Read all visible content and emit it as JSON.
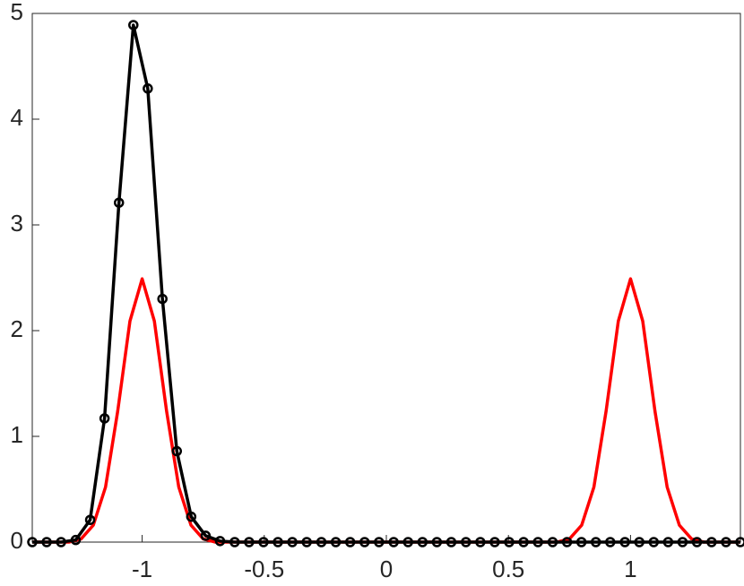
{
  "chart_data": {
    "type": "line",
    "xlim": [
      -1.45,
      1.45
    ],
    "ylim": [
      0,
      5
    ],
    "xticks": [
      -1,
      -0.5,
      0,
      0.5,
      1
    ],
    "yticks": [
      0,
      1,
      2,
      3,
      4,
      5
    ],
    "series": [
      {
        "color": "#ff0000",
        "marker": false,
        "x": [
          -1.45,
          -1.4,
          -1.35,
          -1.3,
          -1.25,
          -1.2,
          -1.15,
          -1.1,
          -1.05,
          -1,
          -0.95,
          -0.9,
          -0.85,
          -0.8,
          -0.75,
          -0.7,
          -0.65,
          -0.6,
          -0.55,
          -0.5,
          -0.45,
          -0.4,
          -0.35,
          -0.3,
          -0.25,
          -0.2,
          -0.15,
          -0.1,
          -0.05,
          0,
          0.05,
          0.1,
          0.15,
          0.2,
          0.25,
          0.3,
          0.35,
          0.4,
          0.45,
          0.5,
          0.55,
          0.6,
          0.65,
          0.7,
          0.75,
          0.8,
          0.85,
          0.9,
          0.95,
          1,
          1.05,
          1.1,
          1.15,
          1.2,
          1.25,
          1.3,
          1.35,
          1.4,
          1.45
        ],
        "values": [
          0,
          0,
          0,
          0,
          0.03,
          0.16,
          0.52,
          1.24,
          2.09,
          2.49,
          2.09,
          1.24,
          0.52,
          0.16,
          0.03,
          0,
          0,
          0,
          0,
          0,
          0,
          0,
          0,
          0,
          0,
          0,
          0,
          0,
          0,
          0,
          0,
          0,
          0,
          0,
          0,
          0,
          0,
          0,
          0,
          0,
          0,
          0,
          0,
          0,
          0.03,
          0.16,
          0.52,
          1.24,
          2.09,
          2.49,
          2.09,
          1.24,
          0.52,
          0.16,
          0.03,
          0,
          0,
          0,
          0
        ]
      },
      {
        "color": "#000000",
        "marker": true,
        "x": [
          -1.45,
          -1.391,
          -1.332,
          -1.272,
          -1.213,
          -1.154,
          -1.095,
          -1.036,
          -0.977,
          -0.917,
          -0.858,
          -0.799,
          -0.74,
          -0.681,
          -0.621,
          -0.562,
          -0.503,
          -0.444,
          -0.385,
          -0.326,
          -0.266,
          -0.207,
          -0.148,
          -0.089,
          -0.03,
          0.03,
          0.089,
          0.148,
          0.207,
          0.266,
          0.326,
          0.385,
          0.444,
          0.503,
          0.562,
          0.621,
          0.681,
          0.74,
          0.799,
          0.858,
          0.917,
          0.977,
          1.036,
          1.095,
          1.154,
          1.213,
          1.272,
          1.332,
          1.391,
          1.45
        ],
        "values": [
          0,
          0,
          0,
          0.02,
          0.21,
          1.17,
          3.21,
          4.89,
          4.29,
          2.3,
          0.86,
          0.24,
          0.06,
          0.01,
          0,
          0,
          0,
          0,
          0,
          0,
          0,
          0,
          0,
          0,
          0,
          0,
          0,
          0,
          0,
          0,
          0,
          0,
          0,
          0,
          0,
          0,
          0,
          0,
          0,
          0,
          0,
          0,
          0,
          0,
          0,
          0,
          0,
          0,
          0,
          0
        ]
      }
    ]
  }
}
